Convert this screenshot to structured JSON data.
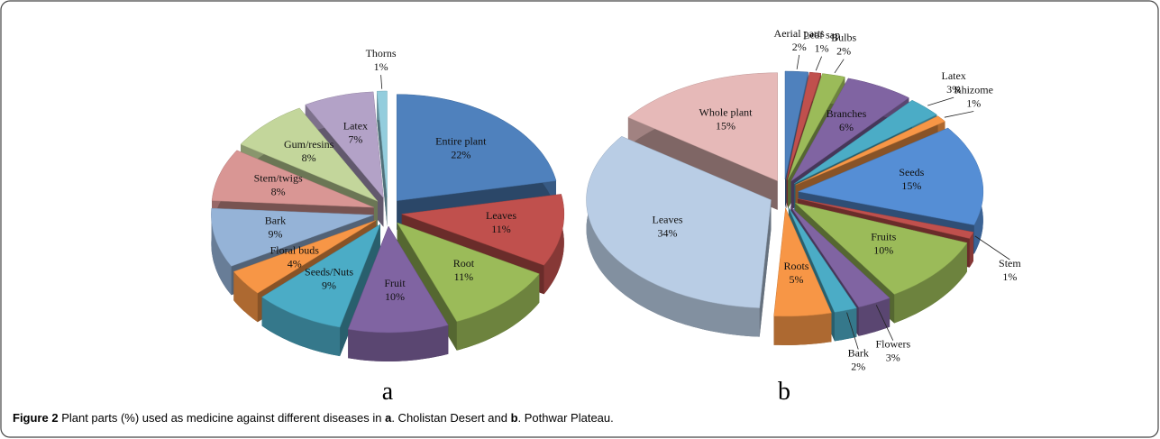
{
  "chart_data": [
    {
      "type": "pie",
      "panel": "a",
      "categories": [
        "Entire plant",
        "Leaves",
        "Root",
        "Fruit",
        "Seeds/Nuts",
        "Floral buds",
        "Bark",
        "Stem/twigs",
        "Gum/resins",
        "Latex",
        "Thorns"
      ],
      "values": [
        22,
        11,
        11,
        10,
        9,
        4,
        9,
        8,
        8,
        7,
        1
      ],
      "value_labels": [
        "22%",
        "11%",
        "11%",
        "10%",
        "9%",
        "4%",
        "9%",
        "8%",
        "8%",
        "7%",
        "1%"
      ],
      "colors": [
        "#4f81bd",
        "#c0504d",
        "#9bbb59",
        "#8064a2",
        "#4bacc6",
        "#f79646",
        "#95b3d7",
        "#d99694",
        "#c3d69b",
        "#b3a2c7",
        "#93cddd"
      ]
    },
    {
      "type": "pie",
      "panel": "b",
      "categories": [
        "Aerial parts",
        "Leaf sap",
        "Bulbs",
        "Branches",
        "Latex",
        "Rhizome",
        "Seeds",
        "Stem",
        "Fruits",
        "Flowers",
        "Bark",
        "Roots",
        "Leaves",
        "Whole plant"
      ],
      "values": [
        2,
        1,
        2,
        6,
        3,
        1,
        15,
        1,
        10,
        3,
        2,
        5,
        34,
        15
      ],
      "value_labels": [
        "2%",
        "1%",
        "2%",
        "6%",
        "3%",
        "1%",
        "15%",
        "1%",
        "10%",
        "3%",
        "2%",
        "5%",
        "34%",
        "15%"
      ],
      "colors": [
        "#4f81bd",
        "#c0504d",
        "#9bbb59",
        "#8064a2",
        "#4bacc6",
        "#f79646",
        "#558ed5",
        "#c0504d",
        "#9bbb59",
        "#8064a2",
        "#4bacc6",
        "#f79646",
        "#b9cde5",
        "#e6b9b8"
      ]
    }
  ],
  "caption": {
    "label": "Figure 2",
    "text1": " Plant parts (%) used as medicine against different diseases in ",
    "a": "a",
    "text2": ". Cholistan Desert and ",
    "b": "b",
    "text3": ". Pothwar Plateau."
  }
}
